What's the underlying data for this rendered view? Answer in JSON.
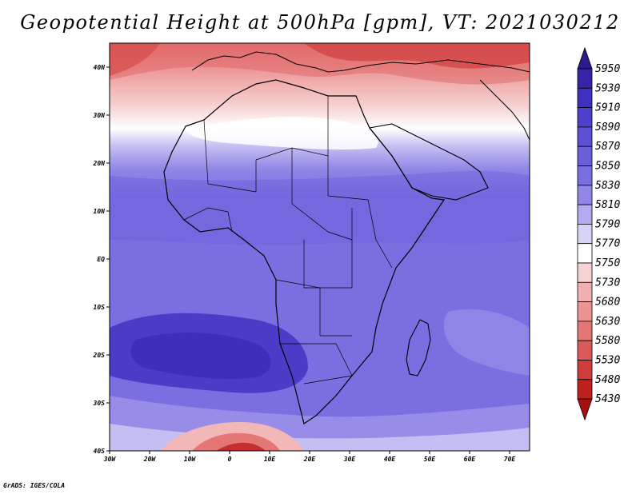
{
  "title": "Geopotential Height at 500hPa [gpm], VT: 2021030212",
  "credit": "GrADS: IGES/COLA",
  "map": {
    "variable": "Geopotential Height at 500hPa",
    "units": "gpm",
    "valid_time": "2021030212",
    "lon_range": [
      -30,
      75
    ],
    "lat_range": [
      -40,
      45
    ],
    "x_ticks": [
      "30W",
      "20W",
      "10W",
      "0",
      "10E",
      "20E",
      "30E",
      "40E",
      "50E",
      "60E",
      "70E"
    ],
    "y_ticks": [
      "40N",
      "30N",
      "20N",
      "10N",
      "EQ",
      "10S",
      "20S",
      "30S",
      "40S"
    ]
  },
  "colorbar": {
    "labels": [
      "5950",
      "5930",
      "5910",
      "5890",
      "5870",
      "5850",
      "5830",
      "5810",
      "5790",
      "5770",
      "5750",
      "5730",
      "5680",
      "5630",
      "5580",
      "5530",
      "5480",
      "5430"
    ],
    "colors": [
      "#2a1c8c",
      "#3425a8",
      "#3f31bf",
      "#4d40cc",
      "#5c51d4",
      "#6a5fdb",
      "#7a6fe0",
      "#8f86e6",
      "#b1abef",
      "#d6d3f7",
      "#ffffff",
      "#f6d3d3",
      "#f1b0b0",
      "#ec9393",
      "#e47676",
      "#dc5959",
      "#d03c3c",
      "#bf2020",
      "#a80f0f"
    ]
  },
  "colors": {
    "ocean_trough": "#5a4fd2",
    "background": "#7a6fe0",
    "ridge_north": "#e06a6a",
    "coastline": "#000000"
  }
}
